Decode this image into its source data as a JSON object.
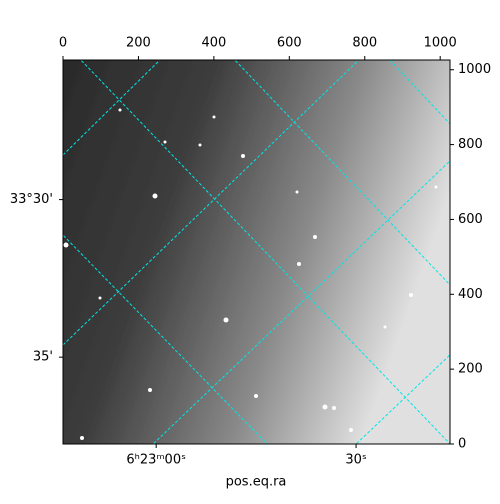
{
  "chart_data": {
    "type": "image",
    "xlabel": "pos.eq.ra",
    "xlim": [
      0,
      1026
    ],
    "ylim": [
      0,
      1026
    ],
    "xticks": [
      0,
      200,
      400,
      600,
      800,
      1000
    ],
    "yticks": [
      0,
      200,
      400,
      600,
      800,
      1000
    ],
    "bottom_ticks": [
      {
        "value": 247,
        "label": "6ʰ23ᵐ00ˢ"
      },
      {
        "value": 777,
        "label": "30ˢ"
      }
    ],
    "left_ticks": [
      {
        "value": 653,
        "label": "33°30'"
      },
      {
        "value": 232,
        "label": "35'"
      }
    ],
    "grid_color": "#00e5e5"
  }
}
